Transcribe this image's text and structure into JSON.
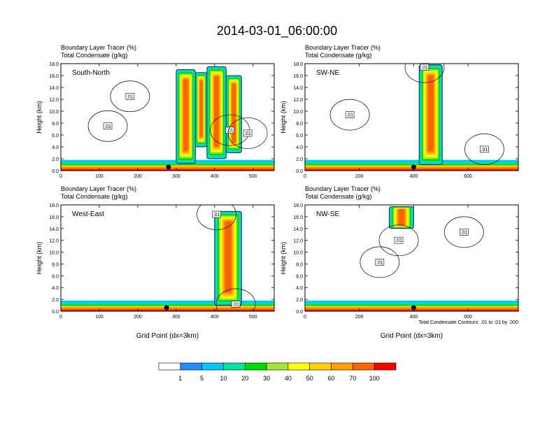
{
  "chart_data": {
    "type": "heatmap",
    "title": "2014-03-01_06:00:00",
    "field_label": "Boundary Layer Tracer   (%)",
    "contour_label": "Total Condensate   (g/kg)",
    "xlabel": "Grid Point (dx=3km)",
    "ylabel": "Height (km)",
    "ylim": [
      0,
      18
    ],
    "yticks": [
      "0.0",
      "2.0",
      "4.0",
      "6.0",
      "8.0",
      "10.0",
      "12.0",
      "14.0",
      "16.0",
      "18.0"
    ],
    "contour_info": "Total Condensate Contours: .01 to .01 by .000",
    "contour_value_label": ".01",
    "colorbar": {
      "colors": [
        "#ffffff",
        "#1e8cff",
        "#00c8ff",
        "#00e6a0",
        "#00dc00",
        "#a0e632",
        "#ffff00",
        "#ffd200",
        "#ffa000",
        "#ff6400",
        "#ff0000"
      ],
      "labels": [
        "1",
        "5",
        "10",
        "20",
        "30",
        "40",
        "50",
        "60",
        "70",
        "100"
      ]
    },
    "panels": [
      {
        "name": "South-North",
        "xlim": [
          0,
          555
        ],
        "xticks": [
          "0",
          "100",
          "200",
          "300",
          "400",
          "500"
        ],
        "xtick_values": [
          0,
          100,
          200,
          300,
          400,
          500
        ],
        "show_xlabel": false,
        "show_contour_info": false,
        "marker_x": 280,
        "plumes": [
          {
            "x0": 300,
            "x1": 350,
            "base": 1.2,
            "top": 17.0
          },
          {
            "x0": 350,
            "x1": 380,
            "base": 4.0,
            "top": 16.5
          },
          {
            "x0": 380,
            "x1": 430,
            "base": 2.0,
            "top": 17.5
          },
          {
            "x0": 430,
            "x1": 470,
            "base": 3.0,
            "top": 16.0
          }
        ],
        "contour_labels": [
          {
            "x": 180,
            "y": 12.5
          },
          {
            "x": 122,
            "y": 7.5
          },
          {
            "x": 440,
            "y": 6.8
          },
          {
            "x": 486,
            "y": 6.3
          }
        ]
      },
      {
        "name": "SW-NE",
        "xlim": [
          0,
          785
        ],
        "xticks": [
          "0",
          "200",
          "400",
          "600"
        ],
        "xtick_values": [
          0,
          200,
          400,
          600
        ],
        "show_xlabel": false,
        "show_contour_info": false,
        "marker_x": 400,
        "plumes": [
          {
            "x0": 420,
            "x1": 505,
            "base": 1.0,
            "top": 17.8
          }
        ],
        "contour_labels": [
          {
            "x": 440,
            "y": 17.4
          },
          {
            "x": 165,
            "y": 9.4
          },
          {
            "x": 660,
            "y": 3.6
          }
        ]
      },
      {
        "name": "West-East",
        "xlim": [
          0,
          555
        ],
        "xticks": [
          "0",
          "100",
          "200",
          "300",
          "400",
          "500"
        ],
        "xtick_values": [
          0,
          100,
          200,
          300,
          400,
          500
        ],
        "show_xlabel": true,
        "show_contour_info": false,
        "marker_x": 275,
        "plumes": [
          {
            "x0": 400,
            "x1": 470,
            "base": 1.0,
            "top": 16.9
          }
        ],
        "contour_labels": [
          {
            "x": 405,
            "y": 16.4
          },
          {
            "x": 455,
            "y": 1.2
          }
        ]
      },
      {
        "name": "NW-SE",
        "xlim": [
          0,
          785
        ],
        "xticks": [
          "0",
          "200",
          "400",
          "600"
        ],
        "xtick_values": [
          0,
          200,
          400,
          600
        ],
        "show_xlabel": true,
        "show_contour_info": true,
        "marker_x": 400,
        "plumes": [
          {
            "x0": 310,
            "x1": 400,
            "base": 14.0,
            "top": 17.7
          }
        ],
        "contour_labels": [
          {
            "x": 585,
            "y": 13.4
          },
          {
            "x": 345,
            "y": 12.0
          },
          {
            "x": 275,
            "y": 8.3
          }
        ]
      }
    ]
  }
}
